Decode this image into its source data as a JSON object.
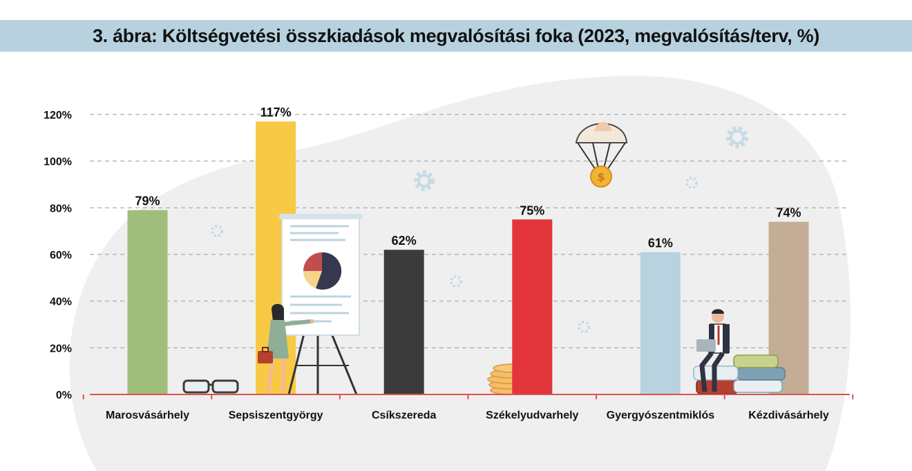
{
  "title": "3. ábra: Költségvetési összkiadások megvalósítási foka (2023, megvalósítás/terv, %)",
  "chart_data": {
    "type": "bar",
    "title": "3. ábra: Költségvetési összkiadások megvalósítási foka (2023, megvalósítás/terv, %)",
    "categories": [
      "Marosvásárhely",
      "Sepsiszentgyörgy",
      "Csíkszereda",
      "Székelyudvarhely",
      "Gyergyószentmiklós",
      "Kézdivásárhely"
    ],
    "values": [
      79,
      117,
      62,
      75,
      61,
      74
    ],
    "value_labels": [
      "79%",
      "117%",
      "62%",
      "75%",
      "61%",
      "74%"
    ],
    "colors": [
      "#9fbe7b",
      "#f8c945",
      "#3b3b3b",
      "#e2343b",
      "#b8d3df",
      "#c3ae95"
    ],
    "yticks": [
      0,
      20,
      40,
      60,
      80,
      100,
      120
    ],
    "ytick_labels": [
      "0%",
      "20%",
      "40%",
      "60%",
      "80%",
      "100%",
      "120%"
    ],
    "ylim": [
      0,
      120
    ],
    "grid": true,
    "axis_color": "#d9524f",
    "grid_color": "#9a9a9a"
  }
}
